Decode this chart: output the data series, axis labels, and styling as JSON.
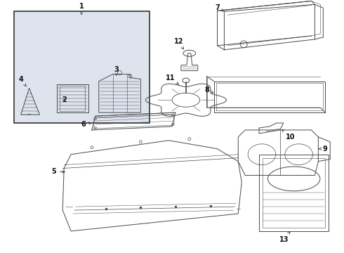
{
  "bg_color": "#ffffff",
  "line_color": "#4a4a4a",
  "label_color": "#111111",
  "box_fill": "#dde4ee",
  "box_edge": "#333333",
  "lw": 0.7,
  "fontsize": 7.0
}
